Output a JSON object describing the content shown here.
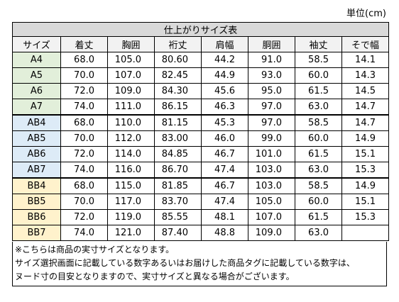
{
  "unit_label": "単位(cm)",
  "table": {
    "title": "仕上がりサイズ表",
    "headers": [
      "サイズ",
      "着丈",
      "胸囲",
      "裄丈",
      "肩幅",
      "胴囲",
      "袖丈",
      "そで幅"
    ],
    "rows": [
      {
        "size": "A4",
        "group": "A",
        "values": [
          "68.0",
          "105.0",
          "80.60",
          "44.2",
          "91.0",
          "58.5",
          "14.1"
        ]
      },
      {
        "size": "A5",
        "group": "A",
        "values": [
          "70.0",
          "107.0",
          "82.45",
          "44.9",
          "93.0",
          "60.0",
          "14.3"
        ]
      },
      {
        "size": "A6",
        "group": "A",
        "values": [
          "72.0",
          "109.0",
          "84.30",
          "45.6",
          "95.0",
          "61.5",
          "14.5"
        ]
      },
      {
        "size": "A7",
        "group": "A",
        "values": [
          "74.0",
          "111.0",
          "86.15",
          "46.3",
          "97.0",
          "63.0",
          "14.7"
        ]
      },
      {
        "size": "AB4",
        "group": "AB",
        "values": [
          "68.0",
          "110.0",
          "81.15",
          "45.3",
          "97.0",
          "58.5",
          "14.7"
        ]
      },
      {
        "size": "AB5",
        "group": "AB",
        "values": [
          "70.0",
          "112.0",
          "83.00",
          "46.0",
          "99.0",
          "60.0",
          "14.9"
        ]
      },
      {
        "size": "AB6",
        "group": "AB",
        "values": [
          "72.0",
          "114.0",
          "84.85",
          "46.7",
          "101.0",
          "61.5",
          "15.1"
        ]
      },
      {
        "size": "AB7",
        "group": "AB",
        "values": [
          "74.0",
          "116.0",
          "86.70",
          "47.4",
          "103.0",
          "63.0",
          "15.3"
        ]
      },
      {
        "size": "BB4",
        "group": "BB",
        "values": [
          "68.0",
          "115.0",
          "81.85",
          "46.7",
          "103.0",
          "58.5",
          "14.9"
        ]
      },
      {
        "size": "BB5",
        "group": "BB",
        "values": [
          "70.0",
          "117.0",
          "83.70",
          "47.4",
          "105.0",
          "60.0",
          "15.1"
        ]
      },
      {
        "size": "BB6",
        "group": "BB",
        "values": [
          "72.0",
          "119.0",
          "85.55",
          "48.1",
          "107.0",
          "61.5",
          "15.3"
        ]
      },
      {
        "size": "BB7",
        "group": "BB",
        "values": [
          "74.0",
          "121.0",
          "87.40",
          "48.8",
          "109.0",
          "63.0",
          ""
        ]
      }
    ]
  },
  "notes": [
    "※こちらは商品の実寸サイズとなります。",
    "サイズ選択画面に記載している数字あるいはお届けした商品タグに記載している数字は、",
    "ヌード寸の目安となりますので、実寸サイズと異なる場合がございます。"
  ],
  "colors": {
    "A": "#e2efda",
    "AB": "#ddebf7",
    "BB": "#fff2cc",
    "title_bg": "#d9d9d9"
  }
}
